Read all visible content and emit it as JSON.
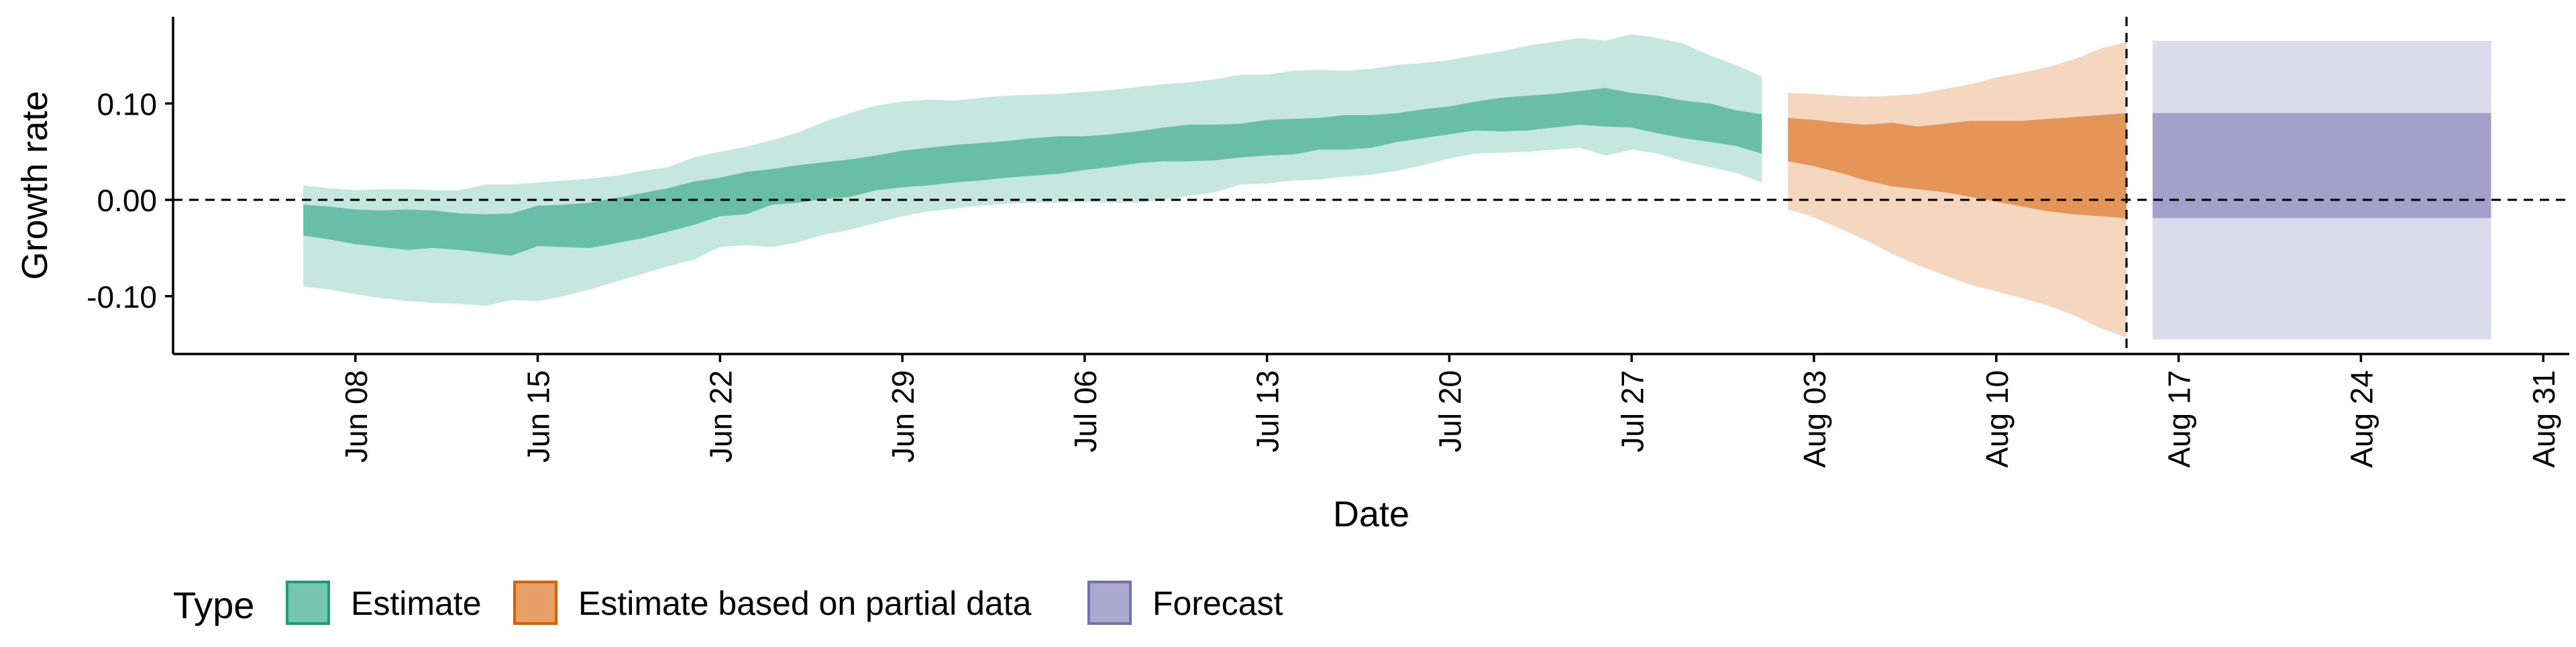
{
  "chart_data": {
    "type": "area",
    "title": "",
    "xlabel": "Date",
    "ylabel": "Growth rate",
    "x_tick_labels": [
      "Jun 08",
      "Jun 15",
      "Jun 22",
      "Jun 29",
      "Jul 06",
      "Jul 13",
      "Jul 20",
      "Jul 27",
      "Aug 03",
      "Aug 10",
      "Aug 17",
      "Aug 24",
      "Aug 31"
    ],
    "y_tick_labels": [
      "0.10",
      "0.00",
      "-0.10"
    ],
    "y_ticks": [
      0.1,
      0.0,
      -0.1
    ],
    "ylim": [
      -0.16,
      0.19
    ],
    "xlim": [
      "2020-06-01",
      "2020-09-01"
    ],
    "grid": false,
    "reference_lines": {
      "horizontal_y": 0.0,
      "vertical_x": "2020-08-15",
      "style": "dashed"
    },
    "legend": {
      "title": "Type",
      "position": "bottom-left",
      "entries": [
        "Estimate",
        "Estimate based on partial data",
        "Forecast"
      ]
    },
    "colors": {
      "Estimate": "#1b9e77",
      "Estimate based on partial data": "#d95f02",
      "Forecast": "#7570b3"
    },
    "series": [
      {
        "name": "Estimate",
        "x": [
          "2020-06-06",
          "2020-06-07",
          "2020-06-08",
          "2020-06-09",
          "2020-06-10",
          "2020-06-11",
          "2020-06-12",
          "2020-06-13",
          "2020-06-14",
          "2020-06-15",
          "2020-06-16",
          "2020-06-17",
          "2020-06-18",
          "2020-06-19",
          "2020-06-20",
          "2020-06-21",
          "2020-06-22",
          "2020-06-23",
          "2020-06-24",
          "2020-06-25",
          "2020-06-26",
          "2020-06-27",
          "2020-06-28",
          "2020-06-29",
          "2020-06-30",
          "2020-07-01",
          "2020-07-02",
          "2020-07-03",
          "2020-07-04",
          "2020-07-05",
          "2020-07-06",
          "2020-07-07",
          "2020-07-08",
          "2020-07-09",
          "2020-07-10",
          "2020-07-11",
          "2020-07-12",
          "2020-07-13",
          "2020-07-14",
          "2020-07-15",
          "2020-07-16",
          "2020-07-17",
          "2020-07-18",
          "2020-07-19",
          "2020-07-20",
          "2020-07-21",
          "2020-07-22",
          "2020-07-23",
          "2020-07-24",
          "2020-07-25",
          "2020-07-26",
          "2020-07-27",
          "2020-07-28",
          "2020-07-29",
          "2020-07-30",
          "2020-07-31",
          "2020-08-01"
        ],
        "lower_90": [
          -0.09,
          -0.093,
          -0.098,
          -0.102,
          -0.105,
          -0.107,
          -0.108,
          -0.11,
          -0.104,
          -0.105,
          -0.1,
          -0.093,
          -0.085,
          -0.077,
          -0.069,
          -0.062,
          -0.049,
          -0.047,
          -0.049,
          -0.044,
          -0.036,
          -0.031,
          -0.024,
          -0.017,
          -0.012,
          -0.009,
          -0.006,
          -0.004,
          -0.003,
          -0.003,
          -0.002,
          -0.003,
          -0.003,
          0.0,
          0.004,
          0.008,
          0.016,
          0.017,
          0.02,
          0.021,
          0.024,
          0.026,
          0.03,
          0.036,
          0.043,
          0.048,
          0.049,
          0.05,
          0.052,
          0.054,
          0.046,
          0.052,
          0.048,
          0.04,
          0.034,
          0.028,
          0.018
        ],
        "lower_50": [
          -0.037,
          -0.041,
          -0.046,
          -0.049,
          -0.052,
          -0.05,
          -0.052,
          -0.055,
          -0.058,
          -0.048,
          -0.049,
          -0.05,
          -0.045,
          -0.04,
          -0.033,
          -0.026,
          -0.017,
          -0.015,
          -0.005,
          -0.003,
          0.001,
          0.003,
          0.01,
          0.013,
          0.015,
          0.018,
          0.02,
          0.023,
          0.025,
          0.027,
          0.031,
          0.034,
          0.038,
          0.04,
          0.04,
          0.041,
          0.044,
          0.046,
          0.047,
          0.052,
          0.052,
          0.054,
          0.06,
          0.064,
          0.068,
          0.072,
          0.071,
          0.072,
          0.075,
          0.078,
          0.076,
          0.075,
          0.069,
          0.064,
          0.06,
          0.056,
          0.048
        ],
        "upper_50": [
          -0.005,
          -0.007,
          -0.01,
          -0.011,
          -0.01,
          -0.011,
          -0.014,
          -0.015,
          -0.014,
          -0.006,
          -0.005,
          -0.003,
          0.002,
          0.007,
          0.012,
          0.019,
          0.023,
          0.029,
          0.032,
          0.036,
          0.039,
          0.042,
          0.046,
          0.051,
          0.054,
          0.057,
          0.059,
          0.061,
          0.064,
          0.066,
          0.066,
          0.068,
          0.071,
          0.075,
          0.078,
          0.078,
          0.079,
          0.083,
          0.084,
          0.085,
          0.088,
          0.088,
          0.09,
          0.094,
          0.097,
          0.102,
          0.106,
          0.108,
          0.11,
          0.113,
          0.116,
          0.111,
          0.108,
          0.103,
          0.1,
          0.093,
          0.089
        ],
        "upper_90": [
          0.015,
          0.012,
          0.01,
          0.011,
          0.011,
          0.01,
          0.01,
          0.016,
          0.016,
          0.018,
          0.02,
          0.022,
          0.025,
          0.03,
          0.034,
          0.044,
          0.05,
          0.055,
          0.062,
          0.07,
          0.081,
          0.09,
          0.098,
          0.102,
          0.104,
          0.103,
          0.106,
          0.108,
          0.109,
          0.11,
          0.112,
          0.114,
          0.117,
          0.12,
          0.122,
          0.125,
          0.13,
          0.13,
          0.134,
          0.135,
          0.134,
          0.136,
          0.14,
          0.142,
          0.145,
          0.15,
          0.154,
          0.16,
          0.164,
          0.168,
          0.165,
          0.172,
          0.168,
          0.162,
          0.15,
          0.14,
          0.128
        ]
      },
      {
        "name": "Estimate based on partial data",
        "x": [
          "2020-08-02",
          "2020-08-03",
          "2020-08-04",
          "2020-08-05",
          "2020-08-06",
          "2020-08-07",
          "2020-08-08",
          "2020-08-09",
          "2020-08-10",
          "2020-08-11",
          "2020-08-12",
          "2020-08-13",
          "2020-08-14",
          "2020-08-15"
        ],
        "lower_90": [
          -0.01,
          -0.018,
          -0.03,
          -0.042,
          -0.056,
          -0.068,
          -0.078,
          -0.088,
          -0.095,
          -0.102,
          -0.11,
          -0.12,
          -0.133,
          -0.143
        ],
        "lower_50": [
          0.04,
          0.035,
          0.028,
          0.02,
          0.014,
          0.011,
          0.008,
          0.003,
          -0.002,
          -0.007,
          -0.012,
          -0.015,
          -0.017,
          -0.019
        ],
        "upper_50": [
          0.085,
          0.083,
          0.08,
          0.078,
          0.08,
          0.076,
          0.079,
          0.082,
          0.082,
          0.082,
          0.084,
          0.086,
          0.088,
          0.09
        ],
        "upper_90": [
          0.111,
          0.11,
          0.108,
          0.107,
          0.108,
          0.11,
          0.115,
          0.12,
          0.127,
          0.132,
          0.138,
          0.146,
          0.157,
          0.164
        ]
      },
      {
        "name": "Forecast",
        "x": [
          "2020-08-16",
          "2020-08-29"
        ],
        "lower_90": [
          -0.145,
          -0.145
        ],
        "lower_50": [
          -0.019,
          -0.019
        ],
        "upper_50": [
          0.09,
          0.09
        ],
        "upper_90": [
          0.165,
          0.165
        ]
      }
    ]
  }
}
